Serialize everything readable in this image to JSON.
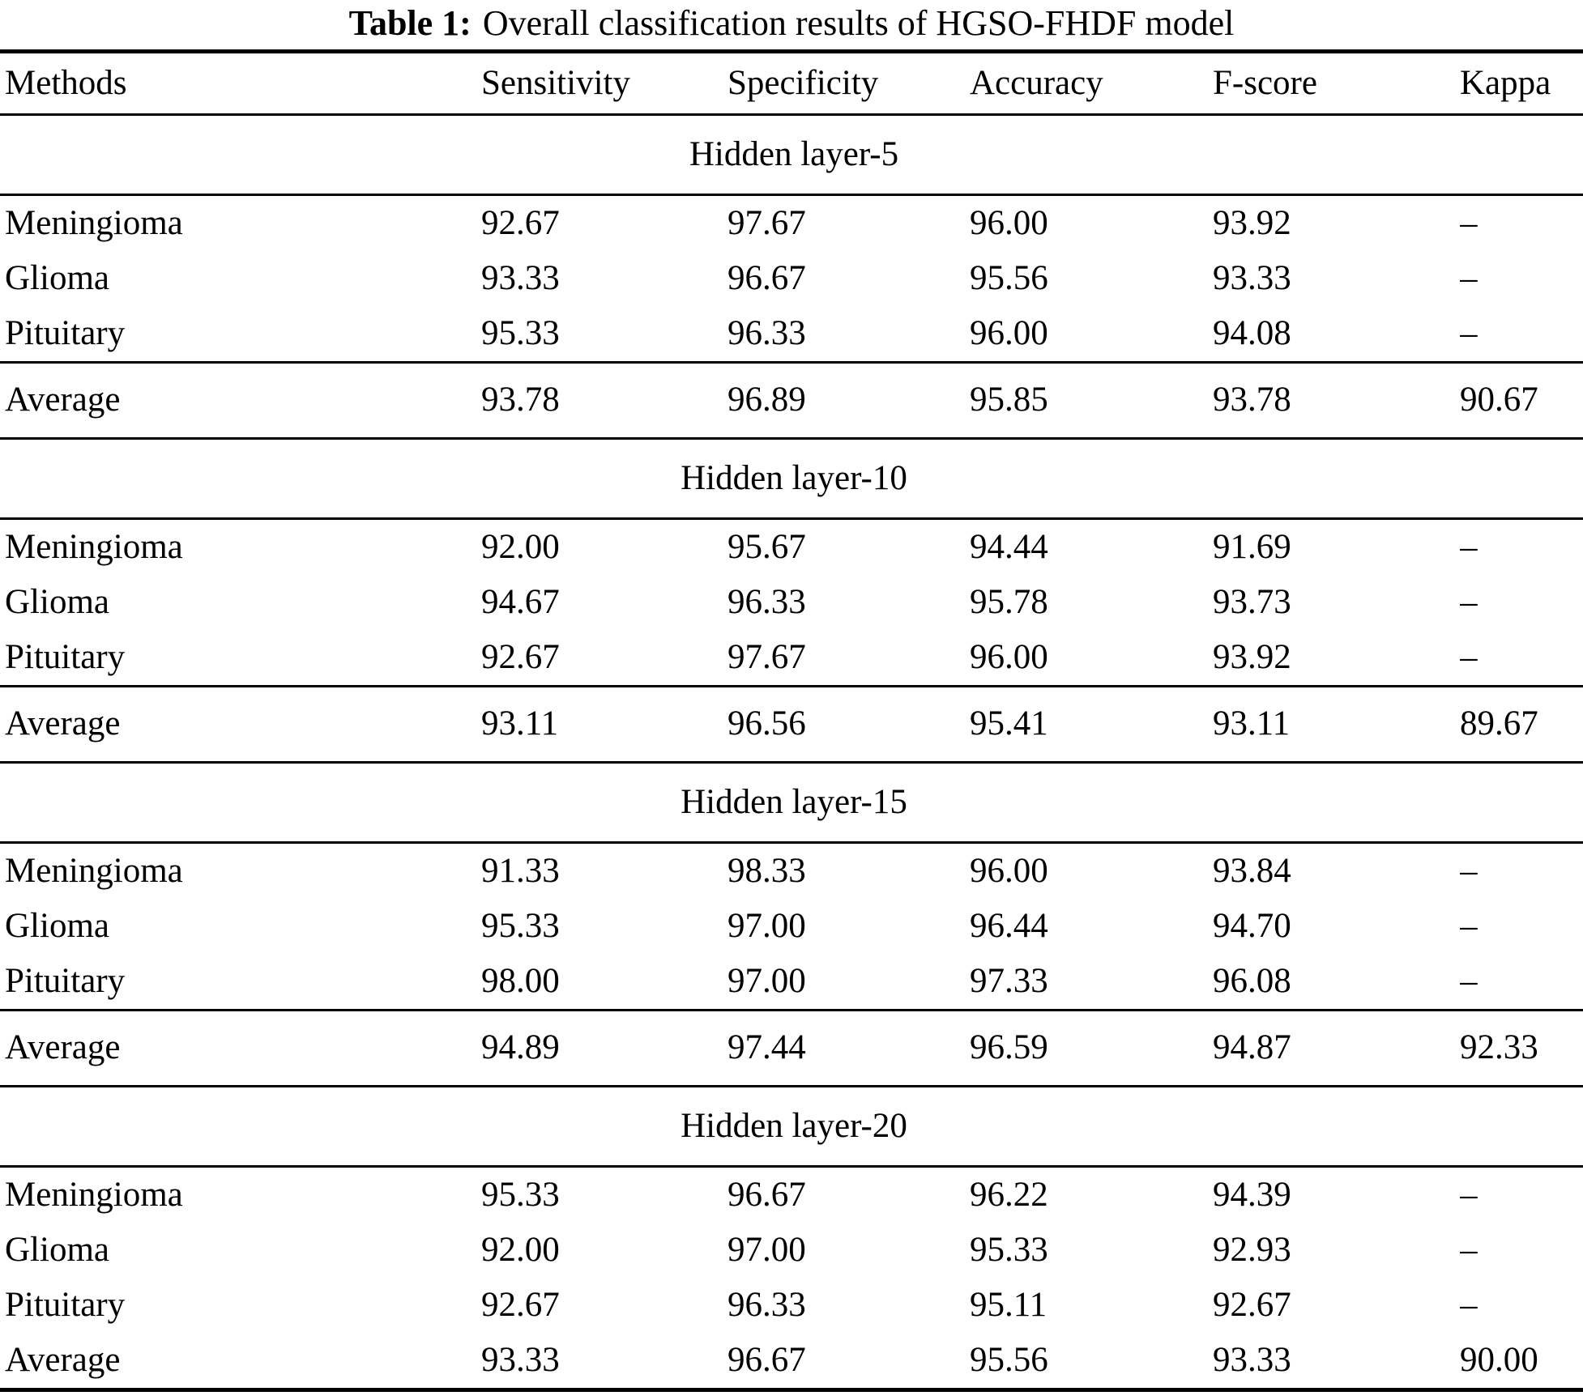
{
  "caption": {
    "label": "Table 1:",
    "text": "Overall classification results of HGSO-FHDF model"
  },
  "table": {
    "columns": [
      "Methods",
      "Sensitivity",
      "Specificity",
      "Accuracy",
      "F-score",
      "Kappa"
    ],
    "sections": [
      {
        "header": "Hidden layer-5",
        "rows": [
          {
            "method": "Meningioma",
            "values": [
              "92.67",
              "97.67",
              "96.00",
              "93.92",
              "–"
            ],
            "rule_above": false
          },
          {
            "method": "Glioma",
            "values": [
              "93.33",
              "96.67",
              "95.56",
              "93.33",
              "–"
            ],
            "rule_above": false
          },
          {
            "method": "Pituitary",
            "values": [
              "95.33",
              "96.33",
              "96.00",
              "94.08",
              "–"
            ],
            "rule_above": false
          },
          {
            "method": "Average",
            "values": [
              "93.78",
              "96.89",
              "95.85",
              "93.78",
              "90.67"
            ],
            "rule_above": true
          }
        ]
      },
      {
        "header": "Hidden layer-10",
        "rows": [
          {
            "method": "Meningioma",
            "values": [
              "92.00",
              "95.67",
              "94.44",
              "91.69",
              "–"
            ],
            "rule_above": false
          },
          {
            "method": "Glioma",
            "values": [
              "94.67",
              "96.33",
              "95.78",
              "93.73",
              "–"
            ],
            "rule_above": false
          },
          {
            "method": "Pituitary",
            "values": [
              "92.67",
              "97.67",
              "96.00",
              "93.92",
              "–"
            ],
            "rule_above": false
          },
          {
            "method": "Average",
            "values": [
              "93.11",
              "96.56",
              "95.41",
              "93.11",
              "89.67"
            ],
            "rule_above": true
          }
        ]
      },
      {
        "header": "Hidden layer-15",
        "rows": [
          {
            "method": "Meningioma",
            "values": [
              "91.33",
              "98.33",
              "96.00",
              "93.84",
              "–"
            ],
            "rule_above": false
          },
          {
            "method": "Glioma",
            "values": [
              "95.33",
              "97.00",
              "96.44",
              "94.70",
              "–"
            ],
            "rule_above": false
          },
          {
            "method": "Pituitary",
            "values": [
              "98.00",
              "97.00",
              "97.33",
              "96.08",
              "–"
            ],
            "rule_above": false
          },
          {
            "method": "Average",
            "values": [
              "94.89",
              "97.44",
              "96.59",
              "94.87",
              "92.33"
            ],
            "rule_above": true
          }
        ]
      },
      {
        "header": "Hidden layer-20",
        "rows": [
          {
            "method": "Meningioma",
            "values": [
              "95.33",
              "96.67",
              "96.22",
              "94.39",
              "–"
            ],
            "rule_above": false
          },
          {
            "method": "Glioma",
            "values": [
              "92.00",
              "97.00",
              "95.33",
              "92.93",
              "–"
            ],
            "rule_above": false
          },
          {
            "method": "Pituitary",
            "values": [
              "92.67",
              "96.33",
              "95.11",
              "92.67",
              "–"
            ],
            "rule_above": false
          },
          {
            "method": "Average",
            "values": [
              "93.33",
              "96.67",
              "95.56",
              "93.33",
              "90.00"
            ],
            "rule_above": false
          }
        ]
      }
    ]
  },
  "colors": {
    "text": "#000000",
    "background": "#ffffff",
    "rule": "#000000"
  }
}
